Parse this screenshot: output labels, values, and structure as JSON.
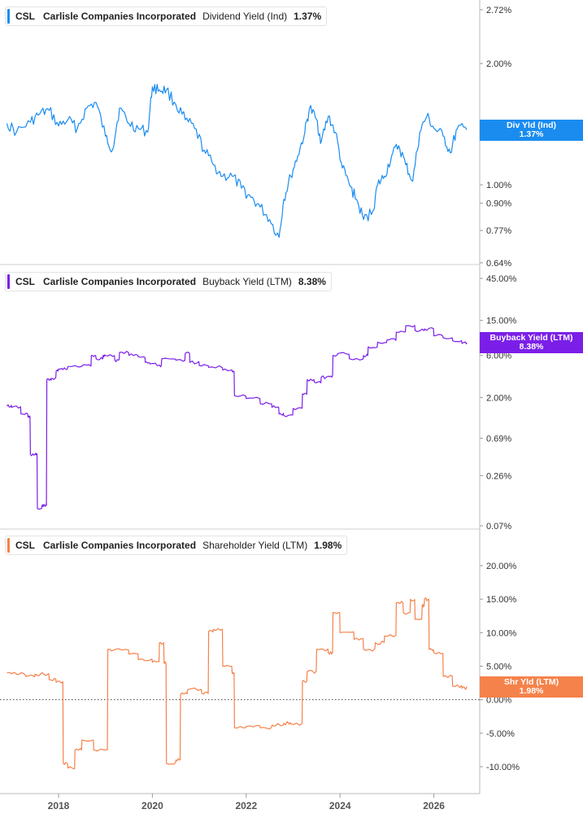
{
  "panels": [
    {
      "ticker": "CSL",
      "company": "Carlisle Companies Incorporated",
      "metric": "Dividend Yield (Ind)",
      "value": "1.37%",
      "tag_line1": "Div Yld (Ind)",
      "tag_line2": "1.37%",
      "color": "#1a8cf0"
    },
    {
      "ticker": "CSL",
      "company": "Carlisle Companies Incorporated",
      "metric": "Buyback Yield (LTM)",
      "value": "8.38%",
      "tag_line1": "Buyback Yield (LTM)",
      "tag_line2": "8.38%",
      "color": "#7b1fe8"
    },
    {
      "ticker": "CSL",
      "company": "Carlisle Companies Incorporated",
      "metric": "Shareholder Yield (LTM)",
      "value": "1.98%",
      "tag_line1": "Shr Yld (LTM)",
      "tag_line2": "1.98%",
      "color": "#f5824a"
    }
  ],
  "chart_data": [
    {
      "type": "line",
      "title": "Dividend Yield (Ind)",
      "scale": "log",
      "y_ticks": [
        "2.72%",
        "2.00%",
        "1.00%",
        "0.90%",
        "0.77%",
        "0.64%"
      ],
      "y_tick_values": [
        2.72,
        2.0,
        1.0,
        0.9,
        0.77,
        0.64
      ],
      "x_ticks": [
        "2018",
        "2020",
        "2022",
        "2024",
        "2026"
      ],
      "series": [
        {
          "name": "Div Yld (Ind)",
          "color": "#1a8cf0",
          "x": [
            2016.9,
            2017.1,
            2017.4,
            2017.6,
            2017.8,
            2018.0,
            2018.2,
            2018.4,
            2018.6,
            2018.8,
            2019.0,
            2019.15,
            2019.3,
            2019.5,
            2019.7,
            2019.9,
            2020.0,
            2020.15,
            2020.3,
            2020.5,
            2020.7,
            2020.9,
            2021.1,
            2021.3,
            2021.5,
            2021.7,
            2021.9,
            2022.1,
            2022.3,
            2022.5,
            2022.7,
            2022.8,
            2022.95,
            2023.1,
            2023.25,
            2023.35,
            2023.5,
            2023.6,
            2023.75,
            2023.9,
            2024.05,
            2024.2,
            2024.35,
            2024.5,
            2024.7,
            2024.8,
            2024.95,
            2025.1,
            2025.25,
            2025.4,
            2025.55,
            2025.7,
            2025.85,
            2026.0,
            2026.2,
            2026.35,
            2026.5,
            2026.7
          ],
          "y": [
            1.42,
            1.35,
            1.43,
            1.5,
            1.53,
            1.4,
            1.45,
            1.38,
            1.55,
            1.6,
            1.32,
            1.22,
            1.55,
            1.42,
            1.38,
            1.35,
            1.75,
            1.72,
            1.72,
            1.58,
            1.45,
            1.38,
            1.22,
            1.12,
            1.05,
            1.05,
            0.98,
            0.93,
            0.88,
            0.82,
            0.74,
            0.92,
            1.05,
            1.18,
            1.35,
            1.55,
            1.45,
            1.28,
            1.48,
            1.35,
            1.1,
            1.0,
            0.92,
            0.82,
            0.86,
            1.0,
            1.05,
            1.18,
            1.25,
            1.12,
            1.02,
            1.35,
            1.48,
            1.38,
            1.32,
            1.2,
            1.38,
            1.37
          ]
        }
      ]
    },
    {
      "type": "line",
      "title": "Buyback Yield (LTM)",
      "scale": "log",
      "y_ticks": [
        "45.00%",
        "15.00%",
        "6.00%",
        "2.00%",
        "0.69%",
        "0.26%",
        "0.07%"
      ],
      "y_tick_values": [
        45.0,
        15.0,
        6.0,
        2.0,
        0.69,
        0.26,
        0.07
      ],
      "x_ticks": [
        "2018",
        "2020",
        "2022",
        "2024",
        "2026"
      ],
      "series": [
        {
          "name": "Buyback Yield (LTM)",
          "color": "#7b1fe8",
          "x": [
            2016.9,
            2017.0,
            2017.2,
            2017.35,
            2017.4,
            2017.5,
            2017.55,
            2017.65,
            2017.7,
            2017.75,
            2017.85,
            2017.95,
            2018.0,
            2018.1,
            2018.2,
            2018.5,
            2018.7,
            2018.8,
            2018.95,
            2019.0,
            2019.2,
            2019.3,
            2019.5,
            2019.7,
            2019.85,
            2019.95,
            2020.1,
            2020.2,
            2020.5,
            2020.7,
            2020.8,
            2021.0,
            2021.2,
            2021.5,
            2021.7,
            2021.75,
            2022.0,
            2022.3,
            2022.55,
            2022.7,
            2022.8,
            2023.0,
            2023.2,
            2023.3,
            2023.45,
            2023.6,
            2023.75,
            2023.85,
            2023.95,
            2024.2,
            2024.5,
            2024.6,
            2024.8,
            2025.0,
            2025.2,
            2025.4,
            2025.6,
            2025.8,
            2026.0,
            2026.2,
            2026.4,
            2026.6,
            2026.7
          ],
          "y": [
            1.6,
            1.55,
            1.3,
            1.2,
            0.45,
            0.45,
            0.11,
            0.12,
            0.12,
            3.2,
            3.3,
            4.0,
            4.2,
            4.2,
            4.5,
            4.6,
            6.0,
            5.5,
            6.0,
            6.0,
            5.3,
            6.5,
            6.0,
            5.8,
            5.0,
            4.8,
            4.6,
            5.5,
            5.3,
            6.3,
            5.0,
            4.6,
            4.4,
            4.1,
            4.0,
            2.1,
            1.95,
            1.7,
            1.55,
            1.3,
            1.25,
            1.5,
            2.2,
            3.2,
            3.0,
            3.4,
            3.5,
            6.0,
            6.3,
            5.5,
            6.0,
            7.5,
            8.5,
            9.0,
            11.0,
            13.0,
            11.5,
            12.0,
            10.0,
            9.5,
            8.8,
            8.2,
            8.38
          ]
        }
      ]
    },
    {
      "type": "line",
      "title": "Shareholder Yield (LTM)",
      "scale": "linear",
      "y_ticks": [
        "20.00%",
        "15.00%",
        "10.00%",
        "5.00%",
        "0.00%",
        "-5.00%",
        "-10.00%"
      ],
      "y_tick_values": [
        20,
        15,
        10,
        5,
        0,
        -5,
        -10
      ],
      "x_ticks": [
        "2018",
        "2020",
        "2022",
        "2024",
        "2026"
      ],
      "series": [
        {
          "name": "Shr Yld (LTM)",
          "color": "#f5824a",
          "x": [
            2016.9,
            2017.1,
            2017.3,
            2017.5,
            2017.8,
            2017.95,
            2018.1,
            2018.2,
            2018.35,
            2018.5,
            2018.75,
            2019.05,
            2019.2,
            2019.5,
            2019.7,
            2020.0,
            2020.15,
            2020.25,
            2020.3,
            2020.5,
            2020.6,
            2020.75,
            2021.05,
            2021.2,
            2021.3,
            2021.5,
            2021.7,
            2021.75,
            2022.0,
            2022.3,
            2022.55,
            2022.8,
            2022.95,
            2023.2,
            2023.3,
            2023.5,
            2023.75,
            2023.85,
            2024.0,
            2024.3,
            2024.5,
            2024.75,
            2024.95,
            2025.2,
            2025.35,
            2025.5,
            2025.6,
            2025.75,
            2025.8,
            2025.9,
            2026.0,
            2026.2,
            2026.4,
            2026.6,
            2026.7
          ],
          "y": [
            4.0,
            3.8,
            3.5,
            3.8,
            3.0,
            2.6,
            -9.5,
            -10.2,
            -7.5,
            -6.0,
            -7.5,
            7.5,
            7.5,
            6.8,
            6.0,
            5.6,
            8.5,
            5.5,
            -9.5,
            -9.0,
            0.8,
            1.5,
            1.0,
            10.2,
            10.5,
            5.0,
            4.0,
            -4.2,
            -4.0,
            -4.2,
            -3.8,
            -3.5,
            -3.6,
            2.8,
            4.2,
            7.5,
            7.0,
            13.0,
            10.0,
            9.0,
            7.5,
            8.5,
            9.5,
            14.5,
            13.0,
            15.0,
            12.0,
            14.0,
            15.0,
            7.5,
            7.0,
            3.5,
            2.0,
            1.7,
            1.98
          ]
        }
      ]
    }
  ]
}
